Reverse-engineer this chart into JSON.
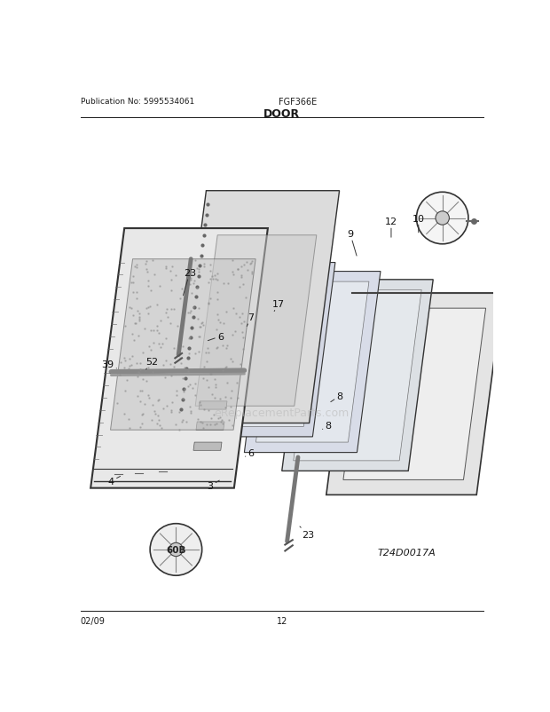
{
  "title": "DOOR",
  "pub_no": "Publication No: 5995534061",
  "model": "FGF366E",
  "diagram_ref": "T24D0017A",
  "date": "02/09",
  "page": "12",
  "bg_color": "#ffffff",
  "line_color": "#1a1a1a",
  "panel_edge": "#333333",
  "panel_colors": [
    "#e8e8e8",
    "#dcdcdc",
    "#d8dce4",
    "#d4d8e0",
    "#d0d4dc",
    "#c8ccd4",
    "#e0e0e0"
  ],
  "circ_fill": "#f5f5f5",
  "watermark_color": "#c8c8c8"
}
